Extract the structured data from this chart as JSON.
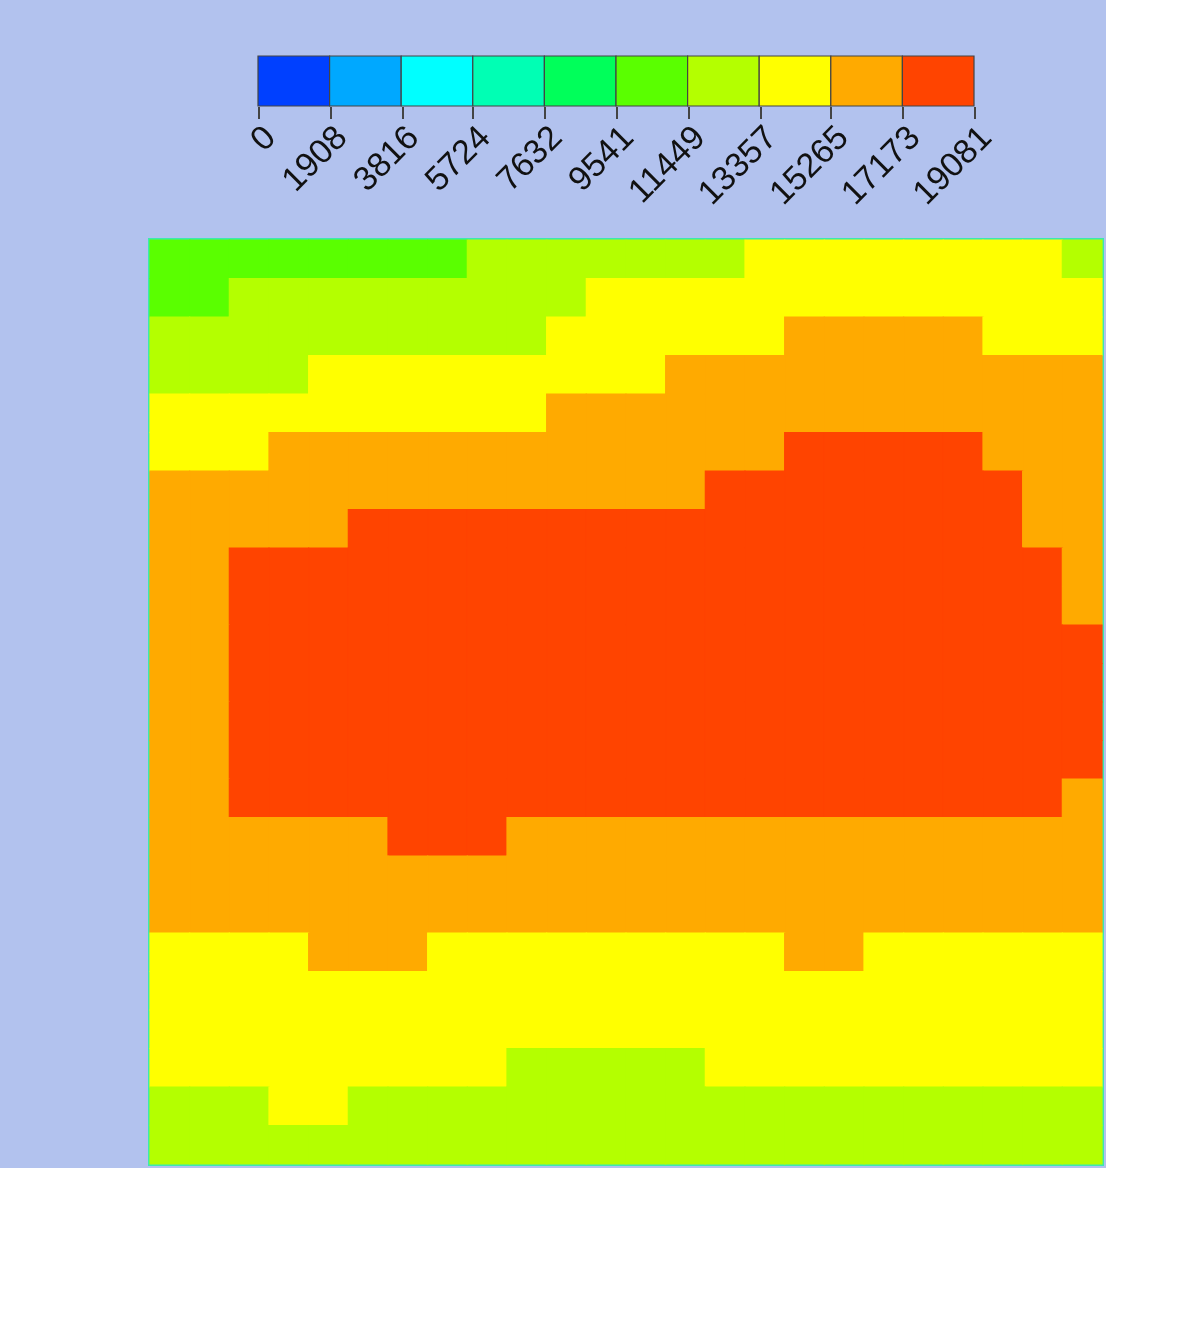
{
  "chart_data": {
    "type": "heatmap",
    "tick_labels": false,
    "clim": [
      0,
      19081
    ],
    "cticks": [
      0,
      1908,
      3816,
      5724,
      7632,
      9541,
      11449,
      13357,
      15265,
      17173,
      19081
    ],
    "colors": [
      "#0040ff",
      "#00a8ff",
      "#00ffff",
      "#00ffb4",
      "#00ff5a",
      "#5aff00",
      "#b4ff00",
      "#ffff00",
      "#ffaa00",
      "#ff4400"
    ],
    "categories": [
      null,
      null,
      null,
      null,
      null,
      null,
      null,
      null,
      null,
      null,
      null,
      null,
      null,
      null,
      null,
      null,
      null,
      null,
      null,
      null,
      null,
      null,
      null,
      null
    ],
    "y_categories": [
      null,
      null,
      null,
      null,
      null,
      null,
      null,
      null,
      null,
      null,
      null,
      null,
      null,
      null,
      null,
      null,
      null,
      null,
      null,
      null,
      null,
      null,
      null,
      null
    ],
    "cells": [
      [
        10500,
        10500,
        10500,
        10500,
        10500,
        10500,
        10500,
        10500,
        12400,
        12400,
        12400,
        12400,
        12400,
        12400,
        12400,
        14300,
        14300,
        14300,
        14300,
        14300,
        14300,
        14300,
        14300,
        12400
      ],
      [
        10500,
        10500,
        12400,
        12400,
        12400,
        12400,
        12400,
        12400,
        12400,
        12400,
        12400,
        14300,
        14300,
        14300,
        14300,
        14300,
        14300,
        14300,
        14300,
        14300,
        14300,
        14300,
        14300,
        14300
      ],
      [
        12400,
        12400,
        12400,
        12400,
        12400,
        12400,
        12400,
        12400,
        12400,
        12400,
        14300,
        14300,
        14300,
        14300,
        14300,
        14300,
        16200,
        16200,
        16200,
        16200,
        16200,
        14300,
        14300,
        14300
      ],
      [
        12400,
        12400,
        12400,
        12400,
        14300,
        14300,
        14300,
        14300,
        14300,
        14300,
        14300,
        14300,
        14300,
        16200,
        16200,
        16200,
        16200,
        16200,
        16200,
        16200,
        16200,
        16200,
        16200,
        16200
      ],
      [
        14300,
        14300,
        14300,
        14300,
        14300,
        14300,
        14300,
        14300,
        14300,
        14300,
        16200,
        16200,
        16200,
        16200,
        16200,
        16200,
        16200,
        16200,
        16200,
        16200,
        16200,
        16200,
        16200,
        16200
      ],
      [
        14300,
        14300,
        14300,
        16200,
        16200,
        16200,
        16200,
        16200,
        16200,
        16200,
        16200,
        16200,
        16200,
        16200,
        16200,
        16200,
        18100,
        18100,
        18100,
        18100,
        18100,
        16200,
        16200,
        16200
      ],
      [
        16200,
        16200,
        16200,
        16200,
        16200,
        16200,
        16200,
        16200,
        16200,
        16200,
        16200,
        16200,
        16200,
        16200,
        18100,
        18100,
        18100,
        18100,
        18100,
        18100,
        18100,
        18100,
        16200,
        16200
      ],
      [
        16200,
        16200,
        16200,
        16200,
        16200,
        18100,
        18100,
        18100,
        18100,
        18100,
        18100,
        18100,
        18100,
        18100,
        18100,
        18100,
        18100,
        18100,
        18100,
        18100,
        18100,
        18100,
        16200,
        16200
      ],
      [
        16200,
        16200,
        18100,
        18100,
        18100,
        18100,
        18100,
        18100,
        18100,
        18100,
        18100,
        18100,
        18100,
        18100,
        18100,
        18100,
        18100,
        18100,
        18100,
        18100,
        18100,
        18100,
        18100,
        16200
      ],
      [
        16200,
        16200,
        18100,
        18100,
        18100,
        18100,
        18100,
        18100,
        18100,
        18100,
        18100,
        18100,
        18100,
        18100,
        18100,
        18100,
        18100,
        18100,
        18100,
        18100,
        18100,
        18100,
        18100,
        16200
      ],
      [
        16200,
        16200,
        18100,
        18100,
        18100,
        18100,
        18100,
        18100,
        18100,
        18100,
        18100,
        18100,
        18100,
        18100,
        18100,
        18100,
        18100,
        18100,
        18100,
        18100,
        18100,
        18100,
        18100,
        18100
      ],
      [
        16200,
        16200,
        18100,
        18100,
        18100,
        18100,
        18100,
        18100,
        18100,
        18100,
        18100,
        18100,
        18100,
        18100,
        18100,
        18100,
        18100,
        18100,
        18100,
        18100,
        18100,
        18100,
        18100,
        18100
      ],
      [
        16200,
        16200,
        18100,
        18100,
        18100,
        18100,
        18100,
        18100,
        18100,
        18100,
        18100,
        18100,
        18100,
        18100,
        18100,
        18100,
        18100,
        18100,
        18100,
        18100,
        18100,
        18100,
        18100,
        18100
      ],
      [
        16200,
        16200,
        18100,
        18100,
        18100,
        18100,
        18100,
        18100,
        18100,
        18100,
        18100,
        18100,
        18100,
        18100,
        18100,
        18100,
        18100,
        18100,
        18100,
        18100,
        18100,
        18100,
        18100,
        18100
      ],
      [
        16200,
        16200,
        18100,
        18100,
        18100,
        18100,
        18100,
        18100,
        18100,
        18100,
        18100,
        18100,
        18100,
        18100,
        18100,
        18100,
        18100,
        18100,
        18100,
        18100,
        18100,
        18100,
        18100,
        16200
      ],
      [
        16200,
        16200,
        16200,
        16200,
        16200,
        16200,
        18100,
        18100,
        18100,
        16200,
        16200,
        16200,
        16200,
        16200,
        16200,
        16200,
        16200,
        16200,
        16200,
        16200,
        16200,
        16200,
        16200,
        16200
      ],
      [
        16200,
        16200,
        16200,
        16200,
        16200,
        16200,
        16200,
        16200,
        16200,
        16200,
        16200,
        16200,
        16200,
        16200,
        16200,
        16200,
        16200,
        16200,
        16200,
        16200,
        16200,
        16200,
        16200,
        16200
      ],
      [
        16200,
        16200,
        16200,
        16200,
        16200,
        16200,
        16200,
        16200,
        16200,
        16200,
        16200,
        16200,
        16200,
        16200,
        16200,
        16200,
        16200,
        16200,
        16200,
        16200,
        16200,
        16200,
        16200,
        16200
      ],
      [
        14300,
        14300,
        14300,
        14300,
        16200,
        16200,
        16200,
        14300,
        14300,
        14300,
        14300,
        14300,
        14300,
        14300,
        14300,
        14300,
        16200,
        16200,
        14300,
        14300,
        14300,
        14300,
        14300,
        14300
      ],
      [
        14300,
        14300,
        14300,
        14300,
        14300,
        14300,
        14300,
        14300,
        14300,
        14300,
        14300,
        14300,
        14300,
        14300,
        14300,
        14300,
        14300,
        14300,
        14300,
        14300,
        14300,
        14300,
        14300,
        14300
      ],
      [
        14300,
        14300,
        14300,
        14300,
        14300,
        14300,
        14300,
        14300,
        14300,
        14300,
        14300,
        14300,
        14300,
        14300,
        14300,
        14300,
        14300,
        14300,
        14300,
        14300,
        14300,
        14300,
        14300,
        14300
      ],
      [
        14300,
        14300,
        14300,
        14300,
        14300,
        14300,
        14300,
        14300,
        14300,
        12400,
        12400,
        12400,
        12400,
        12400,
        14300,
        14300,
        14300,
        14300,
        14300,
        14300,
        14300,
        14300,
        14300,
        14300
      ],
      [
        12400,
        12400,
        12400,
        14300,
        14300,
        12400,
        12400,
        12400,
        12400,
        12400,
        12400,
        12400,
        12400,
        12400,
        12400,
        12400,
        12400,
        12400,
        12400,
        12400,
        12400,
        12400,
        12400,
        12400
      ],
      [
        12400,
        12400,
        12400,
        12400,
        12400,
        12400,
        12400,
        12400,
        12400,
        12400,
        12400,
        12400,
        12400,
        12400,
        12400,
        12400,
        12400,
        12400,
        12400,
        12400,
        12400,
        12400,
        12400,
        12400
      ]
    ]
  }
}
